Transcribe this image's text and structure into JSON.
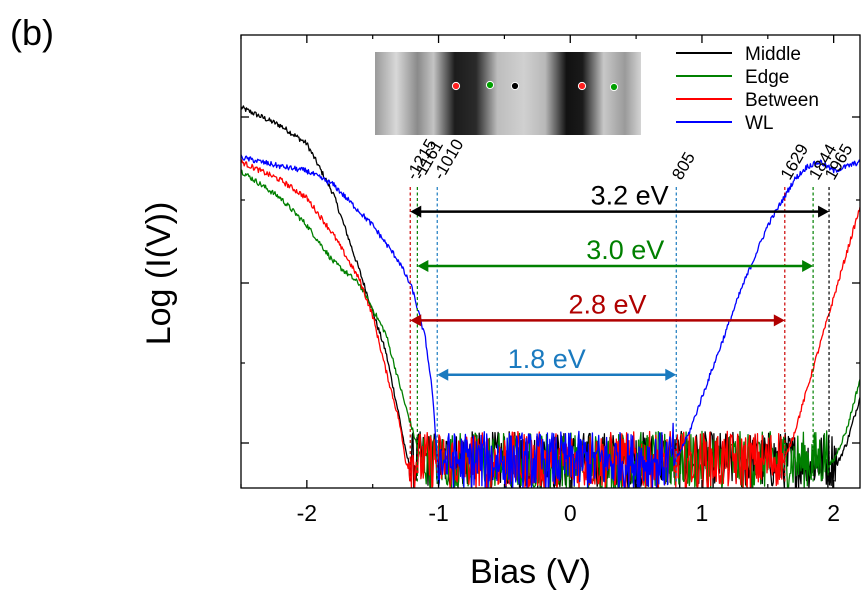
{
  "panel_label": "(b)",
  "chart_data": {
    "type": "line",
    "xlabel": "Bias (V)",
    "ylabel": "Log (I(V))",
    "xlim": [
      -2.5,
      2.2
    ],
    "ylim": [
      0,
      10
    ],
    "x_ticks": [
      -2,
      -1,
      0,
      1,
      2
    ],
    "x_tick_labels": [
      "-2",
      "-1",
      "0",
      "1",
      "2"
    ],
    "y_tick_labels_shown": false,
    "grid": false,
    "legend": {
      "placement": "top-right",
      "entries": [
        {
          "name": "Middle",
          "color": "#000000"
        },
        {
          "name": "Edge",
          "color": "#008000"
        },
        {
          "name": "Between",
          "color": "#ff0000"
        },
        {
          "name": "WL",
          "color": "#0000ff"
        }
      ]
    },
    "inset": {
      "type": "grayscale STM image",
      "markers": [
        {
          "color": "#ff2020"
        },
        {
          "color": "#00a000"
        },
        {
          "color": "#000000"
        },
        {
          "color": "#ff2020"
        },
        {
          "color": "#00a000"
        }
      ]
    },
    "series": [
      {
        "name": "Middle",
        "color": "#000000",
        "x": [
          -2.5,
          -2.2,
          -2.0,
          -1.8,
          -1.6,
          -1.4,
          -1.3,
          -1.25,
          -1.2,
          -0.9,
          -0.5,
          0.0,
          0.5,
          1.0,
          1.5,
          1.8,
          1.9,
          1.95,
          2.0,
          2.1,
          2.2
        ],
        "y": [
          8.4,
          8.0,
          7.6,
          6.5,
          4.8,
          3.0,
          1.6,
          0.8,
          0.3,
          0.3,
          0.3,
          0.3,
          0.3,
          0.3,
          0.3,
          0.3,
          0.3,
          0.3,
          0.35,
          1.0,
          2.0
        ]
      },
      {
        "name": "Edge",
        "color": "#008000",
        "x": [
          -2.5,
          -2.2,
          -2.0,
          -1.8,
          -1.6,
          -1.4,
          -1.25,
          -1.15,
          -1.1,
          -0.5,
          0.0,
          0.5,
          1.0,
          1.5,
          1.8,
          1.9,
          2.0,
          2.1,
          2.2
        ],
        "y": [
          7.0,
          6.4,
          5.8,
          5.0,
          4.5,
          3.4,
          1.8,
          0.8,
          0.3,
          0.3,
          0.3,
          0.3,
          0.3,
          0.3,
          0.3,
          0.35,
          0.6,
          1.3,
          2.4
        ]
      },
      {
        "name": "Between",
        "color": "#ff0000",
        "x": [
          -2.5,
          -2.2,
          -2.0,
          -1.8,
          -1.6,
          -1.5,
          -1.4,
          -1.3,
          -1.25,
          -1.2,
          -0.5,
          0.0,
          0.5,
          1.0,
          1.5,
          1.6,
          1.7,
          1.8,
          1.9,
          2.0,
          2.1,
          2.2
        ],
        "y": [
          7.2,
          6.8,
          6.4,
          5.6,
          4.6,
          3.8,
          2.6,
          1.5,
          0.6,
          0.3,
          0.3,
          0.3,
          0.3,
          0.3,
          0.3,
          0.4,
          1.2,
          2.2,
          3.2,
          4.2,
          5.2,
          6.2
        ]
      },
      {
        "name": "WL",
        "color": "#0000ff",
        "x": [
          -2.5,
          -2.2,
          -2.0,
          -1.8,
          -1.5,
          -1.3,
          -1.2,
          -1.1,
          -1.05,
          -1.0,
          0.0,
          0.75,
          0.8,
          0.9,
          1.0,
          1.1,
          1.2,
          1.3,
          1.4,
          1.5,
          1.6,
          1.7,
          1.8,
          1.9,
          2.0,
          2.1,
          2.2
        ],
        "y": [
          7.3,
          7.1,
          7.0,
          6.7,
          5.8,
          5.0,
          4.4,
          3.3,
          2.2,
          0.3,
          0.3,
          0.3,
          0.6,
          1.2,
          2.0,
          2.8,
          3.6,
          4.4,
          5.1,
          5.8,
          6.3,
          6.8,
          7.1,
          7.2,
          7.0,
          7.1,
          7.2
        ]
      }
    ],
    "annotations": {
      "onset_lines": [
        {
          "label": "-1215",
          "x": -1.215,
          "color": "#cc0000"
        },
        {
          "label": "-1161",
          "x": -1.161,
          "color": "#008000"
        },
        {
          "label": "-1010",
          "x": -1.01,
          "color": "#1a7abf"
        },
        {
          "label": "805",
          "x": 0.805,
          "color": "#1a7abf"
        },
        {
          "label": "1629",
          "x": 1.629,
          "color": "#cc0000"
        },
        {
          "label": "1844",
          "x": 1.844,
          "color": "#008000"
        },
        {
          "label": "1965",
          "x": 1.965,
          "color": "#000000"
        }
      ],
      "gaps": [
        {
          "label": "3.2 eV",
          "x1": -1.215,
          "x2": 1.965,
          "y": 6.1,
          "color": "#000000"
        },
        {
          "label": "3.0 eV",
          "x1": -1.161,
          "x2": 1.844,
          "y": 4.9,
          "color": "#008000"
        },
        {
          "label": "2.8 eV",
          "x1": -1.215,
          "x2": 1.629,
          "y": 3.7,
          "color": "#b00000"
        },
        {
          "label": "1.8 eV",
          "x1": -1.01,
          "x2": 0.805,
          "y": 2.5,
          "color": "#1a7abf"
        }
      ]
    }
  }
}
